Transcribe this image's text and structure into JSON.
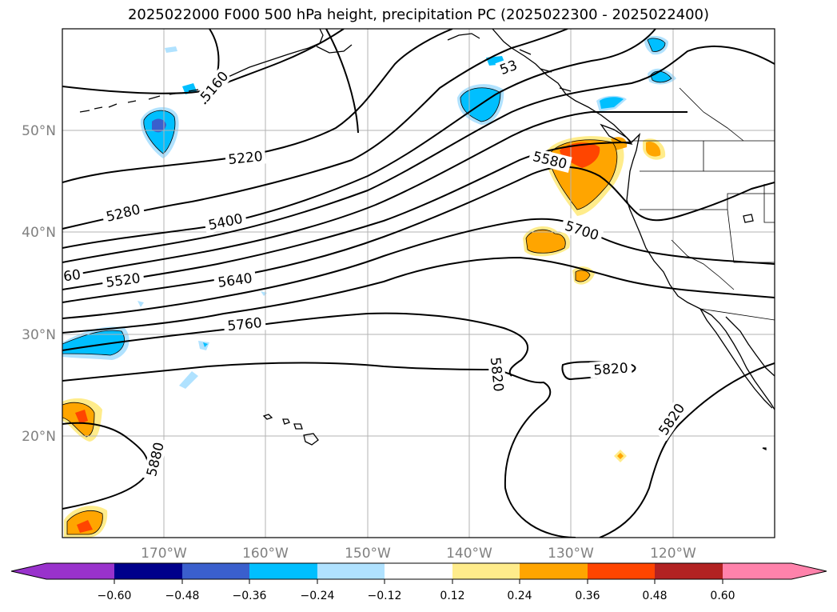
{
  "title": "2025022000 F000 500 hPa height, precipitation PC (2025022300 - 2025022400)",
  "map": {
    "extent": {
      "lon_min": -180,
      "lon_max": -110,
      "lat_min": 10,
      "lat_max": 60
    },
    "lon_ticks": [
      {
        "lon": -170,
        "label": "170°W"
      },
      {
        "lon": -160,
        "label": "160°W"
      },
      {
        "lon": -150,
        "label": "150°W"
      },
      {
        "lon": -140,
        "label": "140°W"
      },
      {
        "lon": -130,
        "label": "130°W"
      },
      {
        "lon": -120,
        "label": "120°W"
      }
    ],
    "lat_ticks": [
      {
        "lat": 50,
        "label": "50°N"
      },
      {
        "lat": 40,
        "label": "40°N"
      },
      {
        "lat": 30,
        "label": "30°N"
      },
      {
        "lat": 20,
        "label": "20°N"
      }
    ],
    "grid": true,
    "contour_labels": {
      "l5160": "5160",
      "l5220": "5220",
      "l5280": "5280",
      "l5400": "5400",
      "l5520": "5520",
      "l5640": "5640",
      "l5760": "5760",
      "l5580": "5580",
      "l5700": "5700",
      "l5820a": "5820",
      "l5820b": "5820",
      "l5820c": "5820",
      "l5880": "5880",
      "l5340": "53",
      "l5460edge": "60"
    },
    "contour_interval": 60,
    "colors": {
      "neg_060": "#9932cc",
      "neg_048": "#00008b",
      "neg_036": "#3a5fcd",
      "neg_024": "#00bfff",
      "neg_012": "#b0e2ff",
      "zero": "#ffffff",
      "pos_012": "#ffec8b",
      "pos_024": "#ffa500",
      "pos_036": "#ff4500",
      "pos_048": "#b22222",
      "pos_060": "#ff82ab"
    }
  },
  "colorbar": {
    "ticks": [
      "−0.60",
      "−0.48",
      "−0.36",
      "−0.24",
      "−0.12",
      "0.12",
      "0.24",
      "0.36",
      "0.48",
      "0.60"
    ],
    "colors": [
      "#9932cc",
      "#00008b",
      "#3a5fcd",
      "#00bfff",
      "#b0e2ff",
      "#ffffff",
      "#ffec8b",
      "#ffa500",
      "#ff4500",
      "#b22222",
      "#ff82ab"
    ],
    "extend": "both"
  }
}
